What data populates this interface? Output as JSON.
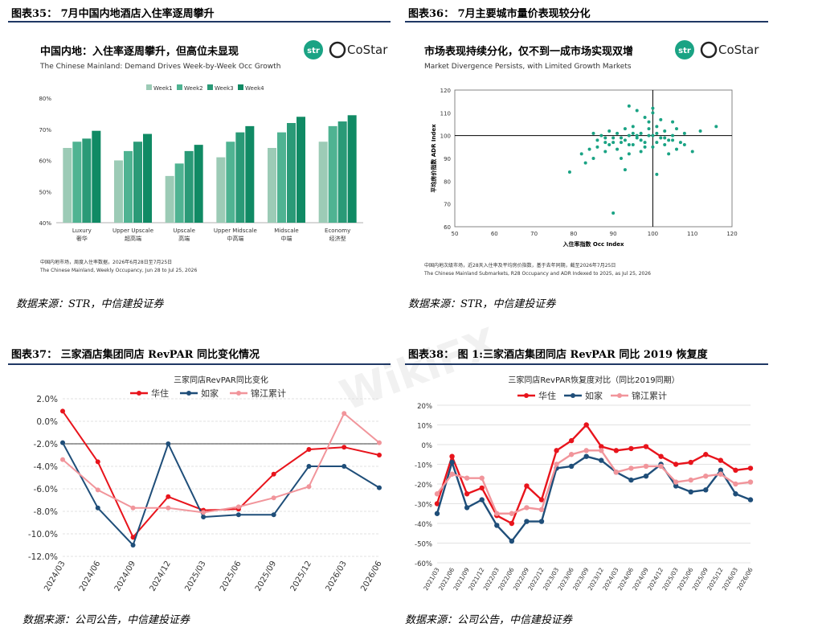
{
  "fig35": {
    "title": "图表35：  7月中国内地酒店入住率逐周攀升",
    "chart_title_cn": "中国内地：入住率逐周攀升，但高位未显现",
    "chart_title_en": "The Chinese Mainland: Demand Drives Week-by-Week Occ Growth",
    "note_cn": "中国内地市场，周度入住率数据，2026年6月28日至7月25日",
    "note_en": "The Chinese Mainland, Weekly Occupancy, Jun 28 to Jul 25, 2026",
    "source": "数据来源：STR，中信建投证券",
    "logo_str": "str",
    "logo_costar": "CoStar"
  },
  "fig36": {
    "title": "图表36：  7月主要城市量价表现较分化",
    "chart_title_cn": "市场表现持续分化，仅不到一成市场实现双增",
    "chart_title_en": "Market Divergence Persists, with Limited Growth Markets",
    "note_cn": "中国内地次级市场，近28天入住率及平均房价指数，基于去年同期，截至2026年7月25日",
    "note_en": "The Chinese Mainland Submarkets, R28 Occupancy and ADR Indexed to 2025, as Jul 25, 2026",
    "source": "数据来源：STR，中信建投证券",
    "logo_str": "str",
    "logo_costar": "CoStar"
  },
  "fig37": {
    "title": "图表37：  三家酒店集团同店 RevPAR 同比变化情况",
    "source": "数据来源：公司公告，中信建投证券"
  },
  "fig38": {
    "title": "图表38：  图 1:三家酒店集团同店 RevPAR 同比 2019 恢复度",
    "source": "数据来源：公司公告，中信建投证券"
  },
  "colors": {
    "rule": "#1f3864",
    "week1": "#9ccbb6",
    "week2": "#4fb392",
    "week3": "#2a9a77",
    "week4": "#108a64",
    "scatter": "#1aa384",
    "huazhu": "#e8141c",
    "rujia": "#1f4e79",
    "jinjiang": "#f1959b"
  },
  "chart_data": [
    {
      "type": "bar",
      "title": "中国内地：入住率逐周攀升，但高位未显现",
      "categories": [
        "Luxury",
        "Upper Upscale",
        "Upscale",
        "Upper Midscale",
        "Midscale",
        "Economy"
      ],
      "categories_cn": [
        "奢华",
        "超高端",
        "高端",
        "中高端",
        "中端",
        "经济型"
      ],
      "series": [
        {
          "name": "Week1",
          "values": [
            64,
            60,
            55,
            61,
            64,
            66
          ]
        },
        {
          "name": "Week2",
          "values": [
            66,
            63,
            59,
            66,
            69,
            71
          ]
        },
        {
          "name": "Week3",
          "values": [
            67,
            66,
            63,
            69,
            72,
            72.5
          ]
        },
        {
          "name": "Week4",
          "values": [
            69.5,
            68.5,
            65,
            71,
            74,
            74.5
          ]
        }
      ],
      "yticks": [
        "80%",
        "70%",
        "60%",
        "50%",
        "40%"
      ],
      "ylim": [
        40,
        80
      ]
    },
    {
      "type": "scatter",
      "title": "市场表现持续分化，仅不到一成市场实现双增",
      "xlabel": "入住率指数 Occ Index",
      "ylabel": "平均房价指数 ADR Index",
      "xlim": [
        50,
        120
      ],
      "ylim": [
        60,
        120
      ],
      "xticks": [
        "50",
        "60",
        "70",
        "80",
        "90",
        "100",
        "110",
        "120"
      ],
      "yticks": [
        "120",
        "110",
        "100",
        "90",
        "80",
        "70",
        "60"
      ],
      "points": [
        [
          79,
          84
        ],
        [
          82,
          92
        ],
        [
          84,
          94
        ],
        [
          86,
          95
        ],
        [
          88,
          97
        ],
        [
          89,
          96
        ],
        [
          90,
          99
        ],
        [
          91,
          101
        ],
        [
          92,
          97
        ],
        [
          93,
          98
        ],
        [
          94,
          100
        ],
        [
          95,
          96
        ],
        [
          96,
          99
        ],
        [
          97,
          101
        ],
        [
          98,
          95
        ],
        [
          99,
          103
        ],
        [
          100,
          100
        ],
        [
          101,
          97
        ],
        [
          102,
          99
        ],
        [
          103,
          102
        ],
        [
          104,
          98
        ],
        [
          105,
          100
        ],
        [
          106,
          103
        ],
        [
          107,
          97
        ],
        [
          108,
          101
        ],
        [
          110,
          93
        ],
        [
          112,
          102
        ],
        [
          116,
          104
        ],
        [
          90,
          66
        ],
        [
          85,
          101
        ],
        [
          87,
          100
        ],
        [
          89,
          102
        ],
        [
          91,
          94
        ],
        [
          93,
          103
        ],
        [
          95,
          104
        ],
        [
          97,
          93
        ],
        [
          99,
          106
        ],
        [
          101,
          104
        ],
        [
          103,
          96
        ],
        [
          105,
          106
        ],
        [
          96,
          111
        ],
        [
          98,
          108
        ],
        [
          100,
          110
        ],
        [
          92,
          90
        ],
        [
          94,
          92
        ],
        [
          86,
          98
        ],
        [
          88,
          93
        ],
        [
          95,
          101
        ],
        [
          97,
          98
        ],
        [
          99,
          100
        ],
        [
          101,
          101
        ],
        [
          103,
          99
        ],
        [
          105,
          98
        ],
        [
          100,
          95
        ],
        [
          98,
          97
        ],
        [
          96,
          100
        ],
        [
          94,
          96
        ],
        [
          92,
          99
        ],
        [
          90,
          97
        ],
        [
          88,
          99
        ],
        [
          106,
          94
        ],
        [
          108,
          96
        ],
        [
          102,
          107
        ],
        [
          100,
          112
        ],
        [
          94,
          113
        ],
        [
          85,
          90
        ],
        [
          83,
          88
        ],
        [
          101,
          83
        ],
        [
          93,
          85
        ],
        [
          104,
          92
        ]
      ]
    },
    {
      "type": "line",
      "title": "三家同店RevPAR同比变化",
      "categories": [
        "2024/03",
        "2024/06",
        "2024/09",
        "2024/12",
        "2025/03",
        "2025/06",
        "2025/09",
        "2025/12",
        "2026/03",
        "2026/06"
      ],
      "series": [
        {
          "name": "华住",
          "values": [
            0.9,
            -3.6,
            -10.3,
            -6.7,
            -7.9,
            -7.8,
            -4.7,
            -2.5,
            -2.3,
            -3.0
          ]
        },
        {
          "name": "如家",
          "values": [
            -1.9,
            -7.7,
            -11.0,
            -2.0,
            -8.5,
            -8.3,
            -8.3,
            -4.0,
            -4.0,
            -5.9
          ]
        },
        {
          "name": "锦江累计",
          "values": [
            -3.4,
            -6.1,
            -7.7,
            -7.7,
            -8.1,
            -7.6,
            -6.8,
            -5.8,
            0.7,
            -1.9
          ]
        }
      ],
      "yticks": [
        "2.0%",
        "0.0%",
        "-2.0%",
        "-4.0%",
        "-6.0%",
        "-8.0%",
        "-10.0%",
        "-12.0%"
      ],
      "ylim": [
        -12,
        2
      ]
    },
    {
      "type": "line",
      "title": "三家同店RevPAR恢复度对比（同比2019同期）",
      "categories": [
        "2021/03",
        "2021/06",
        "2021/09",
        "2021/12",
        "2022/03",
        "2022/06",
        "2022/09",
        "2022/12",
        "2023/03",
        "2023/06",
        "2023/09",
        "2023/12",
        "2024/03",
        "2024/06",
        "2024/09",
        "2024/12",
        "2025/03",
        "2025/06",
        "2025/09",
        "2025/12",
        "2026/03",
        "2026/06"
      ],
      "series": [
        {
          "name": "华住",
          "values": [
            -30,
            -6,
            -25,
            -22,
            -36,
            -40,
            -21,
            -28,
            -3,
            2,
            10,
            -1,
            -3,
            -2,
            -1,
            -6,
            -10,
            -9,
            -5,
            -8,
            -13,
            -12
          ]
        },
        {
          "name": "如家",
          "values": [
            -35,
            -9,
            -32,
            -28,
            -41,
            -49,
            -39,
            -39,
            -12,
            -11,
            -6,
            -8,
            -14,
            -18,
            -16,
            -10,
            -21,
            -24,
            -23,
            -13,
            -25,
            -28
          ]
        },
        {
          "name": "锦江累计",
          "values": [
            -25,
            -15,
            -17,
            -17,
            -35,
            -35,
            -32,
            -33,
            -10,
            -5,
            -3,
            -3,
            -14,
            -12,
            -11,
            -11,
            -19,
            -18,
            -16,
            -15,
            -20,
            -19
          ]
        }
      ],
      "yticks": [
        "20%",
        "10%",
        "0%",
        "-10%",
        "-20%",
        "-30%",
        "-40%",
        "-50%",
        "-60%"
      ],
      "ylim": [
        -60,
        20
      ]
    }
  ]
}
